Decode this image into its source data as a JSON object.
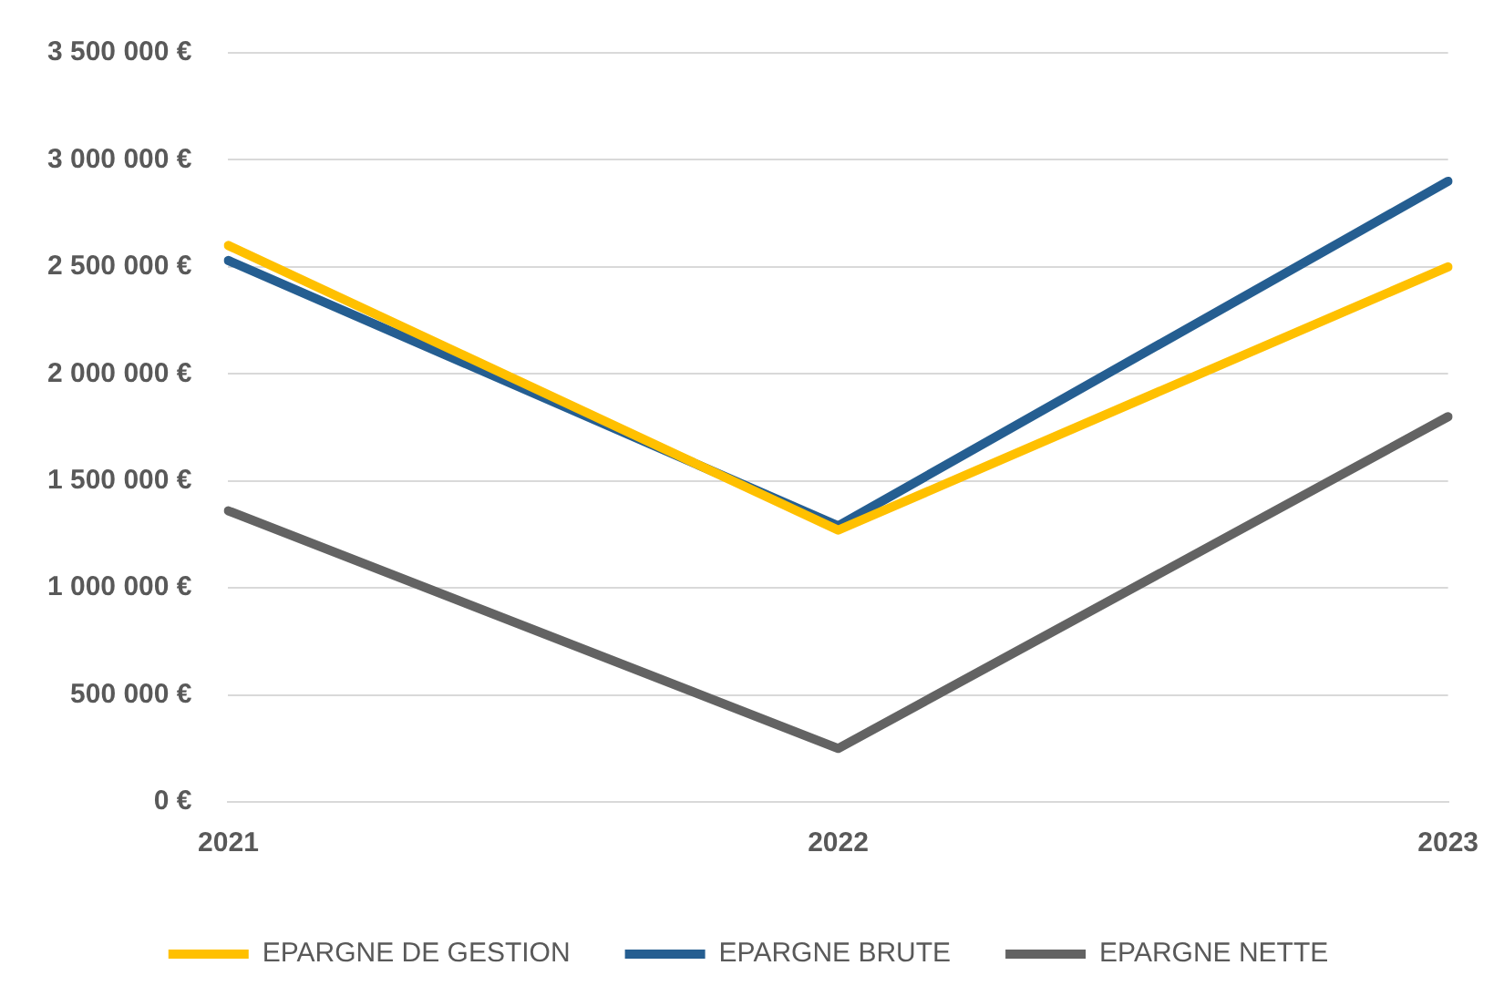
{
  "chart_data": {
    "type": "line",
    "categories": [
      "2021",
      "2022",
      "2023"
    ],
    "series": [
      {
        "name": "EPARGNE DE GESTION",
        "color": "#ffc000",
        "values": [
          2600000,
          1270000,
          2500000
        ]
      },
      {
        "name": "EPARGNE BRUTE",
        "color": "#255e91",
        "values": [
          2530000,
          1290000,
          2900000
        ]
      },
      {
        "name": "EPARGNE NETTE",
        "color": "#636363",
        "values": [
          1360000,
          250000,
          1800000
        ]
      }
    ],
    "ylim": [
      0,
      3500000
    ],
    "yticks": [
      {
        "value": 0,
        "label": "0 €"
      },
      {
        "value": 500000,
        "label": "500 000 €"
      },
      {
        "value": 1000000,
        "label": "1 000 000 €"
      },
      {
        "value": 1500000,
        "label": "1 500 000 €"
      },
      {
        "value": 2000000,
        "label": "2 000 000 €"
      },
      {
        "value": 2500000,
        "label": "2 500 000 €"
      },
      {
        "value": 3000000,
        "label": "3 000 000 €"
      },
      {
        "value": 3500000,
        "label": "3 500 000 €"
      }
    ],
    "grid": "y",
    "legend": "bottom",
    "marker": "none",
    "line_style": "solid"
  }
}
